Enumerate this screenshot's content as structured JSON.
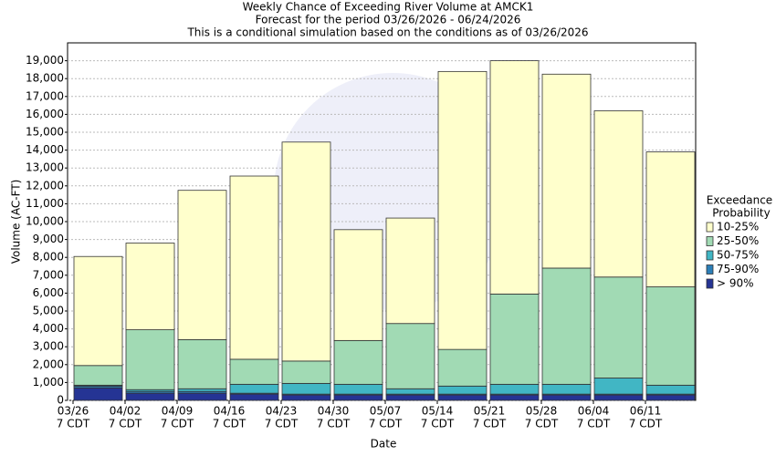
{
  "chart_data": {
    "type": "stacked_bar",
    "title": [
      "Weekly Chance of Exceeding River Volume at AMCK1",
      "Forecast for the period 03/26/2026 - 06/24/2026",
      "This is a conditional simulation based on the conditions as of 03/26/2026"
    ],
    "x_label": "Date",
    "y_label": "Volume (AC-FT)",
    "legend_title": [
      "Exceedance",
      "Probability"
    ],
    "legend_position": "right",
    "grid": true,
    "categories": [
      [
        "03/26",
        "7 CDT"
      ],
      [
        "04/02",
        "7 CDT"
      ],
      [
        "04/09",
        "7 CDT"
      ],
      [
        "04/16",
        "7 CDT"
      ],
      [
        "04/23",
        "7 CDT"
      ],
      [
        "04/30",
        "7 CDT"
      ],
      [
        "05/07",
        "7 CDT"
      ],
      [
        "05/14",
        "7 CDT"
      ],
      [
        "05/21",
        "7 CDT"
      ],
      [
        "05/28",
        "7 CDT"
      ],
      [
        "06/04",
        "7 CDT"
      ],
      [
        "06/11",
        "7 CDT"
      ]
    ],
    "series": [
      {
        "name": "10-25%",
        "color": "#ffffcc",
        "values": [
          6100,
          4850,
          8350,
          10250,
          12250,
          6200,
          5900,
          15550,
          13050,
          10850,
          9300,
          7550
        ]
      },
      {
        "name": "25-50%",
        "color": "#a1dab4",
        "values": [
          1100,
          3350,
          2750,
          1400,
          1250,
          2450,
          3650,
          2050,
          5050,
          6500,
          5650,
          5500
        ]
      },
      {
        "name": "50-75%",
        "color": "#41b6c4",
        "values": [
          50,
          100,
          150,
          500,
          600,
          550,
          300,
          450,
          550,
          550,
          900,
          500
        ]
      },
      {
        "name": "75-90%",
        "color": "#2c7fb8",
        "values": [
          100,
          100,
          100,
          50,
          50,
          50,
          50,
          50,
          50,
          50,
          50,
          50
        ]
      },
      {
        "name": "> 90%",
        "color": "#253494",
        "values": [
          700,
          400,
          400,
          350,
          300,
          300,
          300,
          300,
          300,
          300,
          300,
          300
        ]
      }
    ],
    "ylim": [
      0,
      20000
    ],
    "yticks": [
      0,
      {
        "value": 1000,
        "label": "1,000"
      },
      {
        "value": 2000,
        "label": "2,000"
      },
      {
        "value": 3000,
        "label": "3,000"
      },
      {
        "value": 4000,
        "label": "4,000"
      },
      {
        "value": 5000,
        "label": "5,000"
      },
      {
        "value": 6000,
        "label": "6,000"
      },
      {
        "value": 7000,
        "label": "7,000"
      },
      {
        "value": 8000,
        "label": "8,000"
      },
      {
        "value": 9000,
        "label": "9,000"
      },
      {
        "value": 10000,
        "label": "10,000"
      },
      {
        "value": 11000,
        "label": "11,000"
      },
      {
        "value": 12000,
        "label": "12,000"
      },
      {
        "value": 13000,
        "label": "13,000"
      },
      {
        "value": 14000,
        "label": "14,000"
      },
      {
        "value": 15000,
        "label": "15,000"
      },
      {
        "value": 16000,
        "label": "16,000"
      },
      {
        "value": 17000,
        "label": "17,000"
      },
      {
        "value": 18000,
        "label": "18,000"
      },
      {
        "value": 19000,
        "label": "19,000"
      }
    ]
  }
}
